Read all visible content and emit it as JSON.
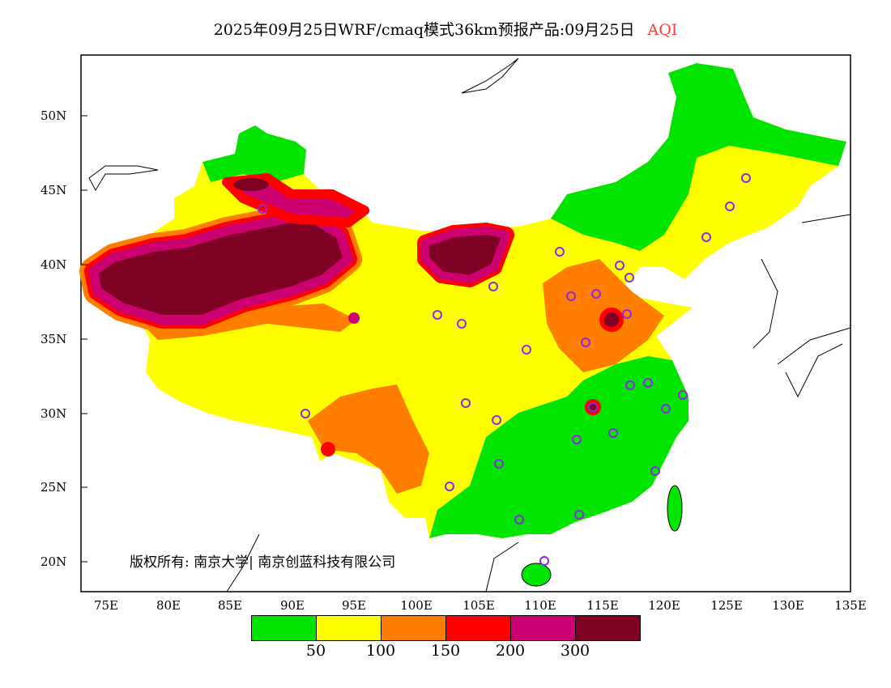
{
  "title": {
    "main": "2025年09月25日WRF/cmaq模式36km预报产品:09月25日",
    "variable": "AQI"
  },
  "axes": {
    "lat_labels": [
      "50N",
      "45N",
      "40N",
      "35N",
      "30N",
      "25N",
      "20N"
    ],
    "lon_labels": [
      "75E",
      "80E",
      "85E",
      "90E",
      "95E",
      "100E",
      "105E",
      "110E",
      "115E",
      "120E",
      "125E",
      "130E",
      "135E"
    ]
  },
  "copyright": "版权所有: 南京大学| 南京创蓝科技有限公司",
  "legend": {
    "colors": [
      "#00e400",
      "#ffff00",
      "#ff7e00",
      "#ff0000",
      "#cc0070",
      "#7e0023"
    ],
    "labels": [
      "50",
      "100",
      "150",
      "200",
      "300"
    ]
  }
}
